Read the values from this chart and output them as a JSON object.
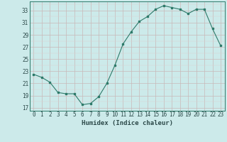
{
  "x": [
    0,
    1,
    2,
    3,
    4,
    5,
    6,
    7,
    8,
    9,
    10,
    11,
    12,
    13,
    14,
    15,
    16,
    17,
    18,
    19,
    20,
    21,
    22,
    23
  ],
  "y": [
    22.5,
    22.0,
    21.2,
    19.5,
    19.3,
    19.3,
    17.5,
    17.7,
    18.8,
    21.0,
    24.0,
    27.5,
    29.5,
    31.2,
    32.0,
    33.2,
    33.8,
    33.5,
    33.2,
    32.5,
    33.2,
    33.2,
    30.0,
    27.2
  ],
  "xlabel": "Humidex (Indice chaleur)",
  "yticks": [
    17,
    19,
    21,
    23,
    25,
    27,
    29,
    31,
    33
  ],
  "xticks": [
    0,
    1,
    2,
    3,
    4,
    5,
    6,
    7,
    8,
    9,
    10,
    11,
    12,
    13,
    14,
    15,
    16,
    17,
    18,
    19,
    20,
    21,
    22,
    23
  ],
  "ylim": [
    16.5,
    34.5
  ],
  "xlim": [
    -0.5,
    23.5
  ],
  "line_color": "#2d7a6a",
  "marker_color": "#2d7a6a",
  "bg_color": "#cceaea",
  "grid_major_color": "#c8b8b8",
  "grid_minor_color": "#ddd0d0",
  "xlabel_color": "#2d4a4a"
}
